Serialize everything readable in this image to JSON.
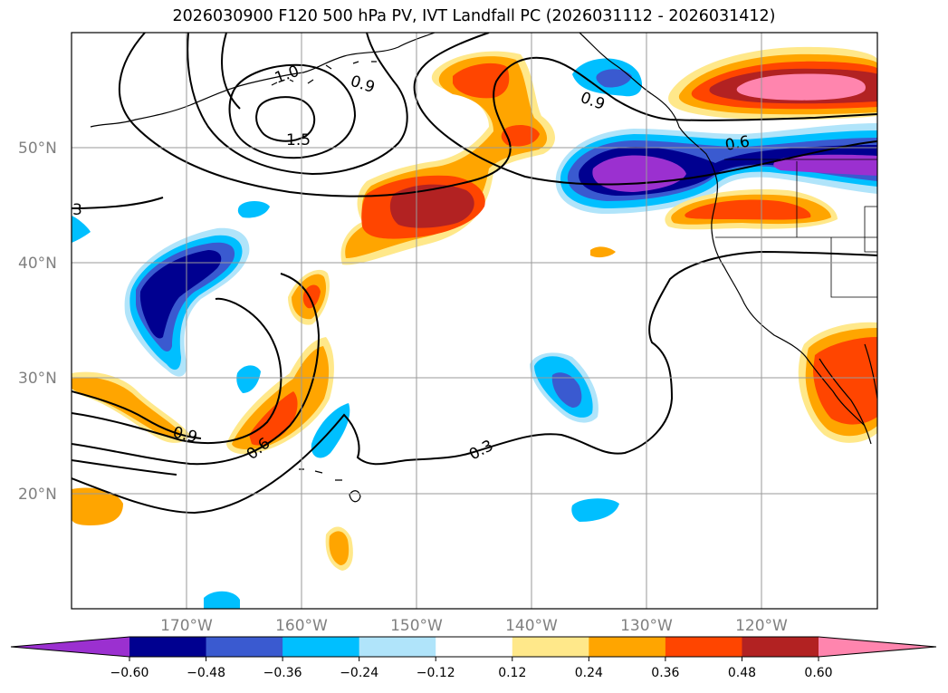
{
  "title": "2026030900 F120 500 hPa PV, IVT Landfall PC (2026031112 - 2026031412)",
  "lat_labels": [
    "50°N",
    "40°N",
    "30°N",
    "20°N"
  ],
  "lon_labels": [
    "170°W",
    "160°W",
    "150°W",
    "140°W",
    "130°W",
    "120°W"
  ],
  "contour_labels": [
    "3",
    "1.0",
    "0.9",
    "1.5",
    "0.9",
    "0.6",
    "0.9",
    "0.6",
    "0.3"
  ],
  "colorbar": {
    "ticks": [
      "−0.60",
      "−0.48",
      "−0.36",
      "−0.24",
      "−0.12",
      "0.12",
      "0.24",
      "0.36",
      "0.48",
      "0.60"
    ],
    "colors": [
      "#9b30d0",
      "#000090",
      "#3a5ad0",
      "#00bfff",
      "#b0e4fa",
      "#ffffff",
      "#ffe88a",
      "#ffa500",
      "#ff4500",
      "#b22222",
      "#ff85ae",
      "#ff85ae"
    ]
  }
}
